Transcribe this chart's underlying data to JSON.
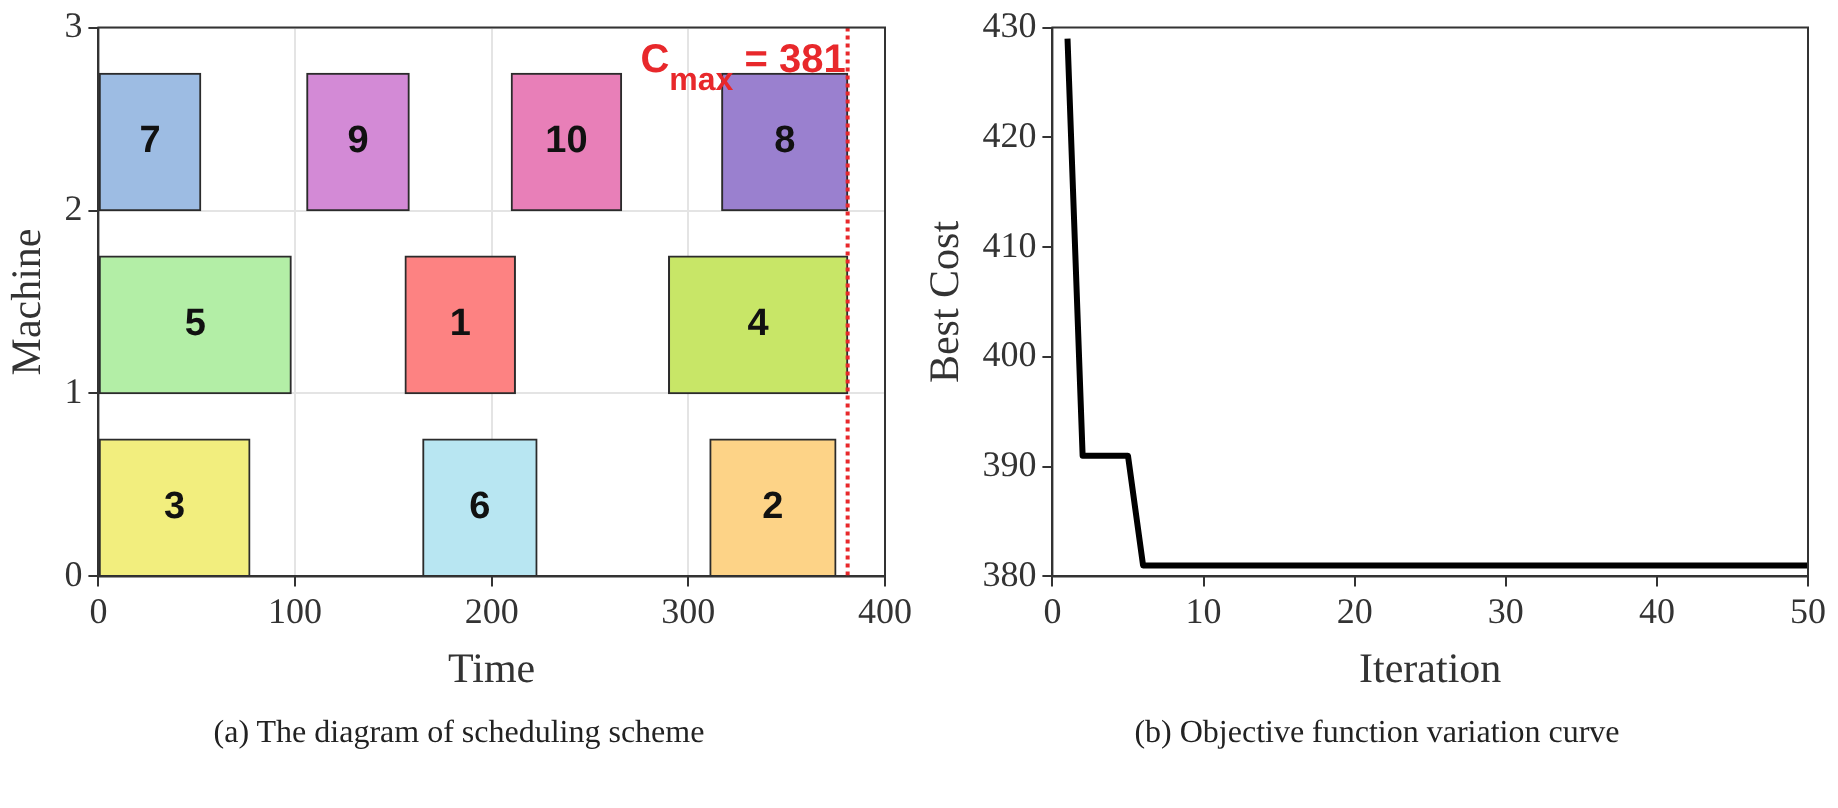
{
  "chart_data": [
    {
      "type": "bar",
      "orientation": "horizontal",
      "xlabel": "Time",
      "ylabel": "Machine",
      "x": [
        2.375,
        1.375,
        0.375
      ],
      "series": [
        {
          "name": "7",
          "color": "#9dbce3",
          "base": [
            0,
            null,
            null
          ],
          "values": [
            52,
            null,
            null
          ]
        },
        {
          "name": "9",
          "color": "#d38ad6",
          "base": [
            106,
            null,
            null
          ],
          "values": [
            52,
            null,
            null
          ]
        },
        {
          "name": "10",
          "color": "#e87fb8",
          "base": [
            210,
            null,
            null
          ],
          "values": [
            56,
            null,
            null
          ]
        },
        {
          "name": "8",
          "color": "#9a80cf",
          "base": [
            317,
            null,
            null
          ],
          "values": [
            64,
            null,
            null
          ]
        },
        {
          "name": "5",
          "color": "#b3eea6",
          "base": [
            null,
            0,
            null
          ],
          "values": [
            null,
            98,
            null
          ]
        },
        {
          "name": "1",
          "color": "#fd8282",
          "base": [
            null,
            156,
            null
          ],
          "values": [
            null,
            56,
            null
          ]
        },
        {
          "name": "4",
          "color": "#c8e667",
          "base": [
            null,
            290,
            null
          ],
          "values": [
            null,
            91,
            null
          ]
        },
        {
          "name": "3",
          "color": "#f2ee7e",
          "base": [
            null,
            null,
            0
          ],
          "values": [
            null,
            null,
            77
          ]
        },
        {
          "name": "6",
          "color": "#b8e6f2",
          "base": [
            null,
            null,
            165
          ],
          "values": [
            null,
            null,
            58
          ]
        },
        {
          "name": "2",
          "color": "#fdd387",
          "base": [
            null,
            null,
            311
          ],
          "values": [
            null,
            null,
            64
          ]
        }
      ],
      "xlim": [
        0,
        400
      ],
      "xticks": [
        0,
        100,
        200,
        300,
        400
      ],
      "ylim": [
        0,
        3
      ],
      "yticks": [
        0,
        1,
        2,
        3
      ],
      "grid": true,
      "ref_lines": [
        {
          "axis": "x",
          "value": 381,
          "label": "C$_{max}$ = 381",
          "color": "#e8282b",
          "line_style": "dotted"
        }
      ],
      "annotations": [
        "(a) The diagram of scheduling scheme"
      ]
    },
    {
      "type": "line",
      "xlabel": "Iteration",
      "ylabel": "Best Cost",
      "marker": "none",
      "line_style": "solid",
      "x": [
        1,
        2,
        3,
        4,
        5,
        6,
        7,
        8,
        9,
        10,
        11,
        12,
        13,
        14,
        15,
        16,
        17,
        18,
        19,
        20,
        21,
        22,
        23,
        24,
        25,
        26,
        27,
        28,
        29,
        30,
        31,
        32,
        33,
        34,
        35,
        36,
        37,
        38,
        39,
        40,
        41,
        42,
        43,
        44,
        45,
        46,
        47,
        48,
        49,
        50
      ],
      "series": [
        {
          "color": "#000000",
          "values": [
            429,
            391,
            391,
            391,
            391,
            381,
            381,
            381,
            381,
            381,
            381,
            381,
            381,
            381,
            381,
            381,
            381,
            381,
            381,
            381,
            381,
            381,
            381,
            381,
            381,
            381,
            381,
            381,
            381,
            381,
            381,
            381,
            381,
            381,
            381,
            381,
            381,
            381,
            381,
            381,
            381,
            381,
            381,
            381,
            381,
            381,
            381,
            381,
            381,
            381
          ]
        }
      ],
      "xlim": [
        0,
        50
      ],
      "xticks": [
        0,
        10,
        20,
        30,
        40,
        50
      ],
      "ylim": [
        380,
        430
      ],
      "yticks": [
        380,
        390,
        400,
        410,
        420,
        430
      ],
      "annotations": [
        "(b) Objective function variation curve"
      ]
    }
  ]
}
